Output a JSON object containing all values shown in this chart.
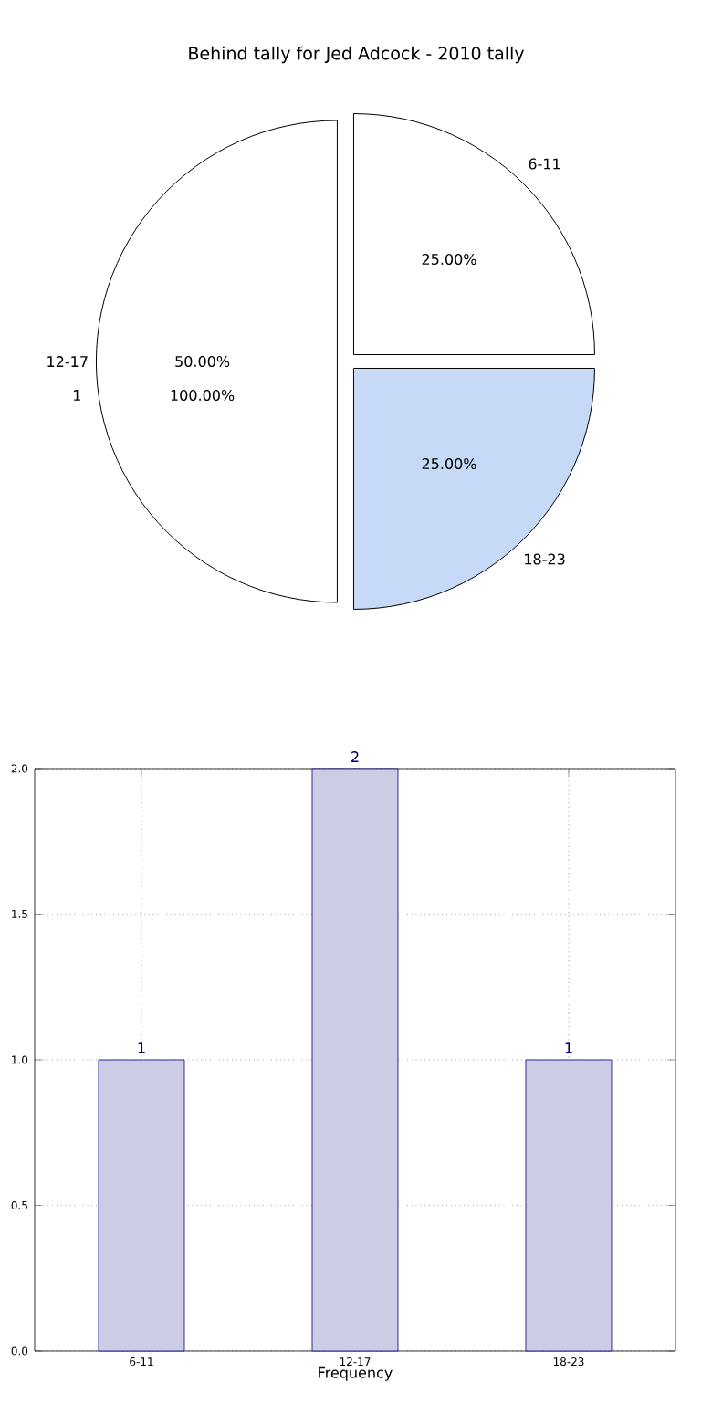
{
  "chart_data": [
    {
      "type": "pie",
      "title": "Behind tally for Jed Adcock - 2010 tally",
      "categories": [
        "6-11",
        "12-17",
        "18-23"
      ],
      "values": [
        25,
        50,
        25
      ],
      "colors": [
        "#ffffff",
        "#ffffff",
        "#c6d9f7"
      ],
      "value_labels": [
        "25.00%",
        "50.00%",
        "25.00%"
      ],
      "annotations": [
        "1",
        "100.00%"
      ]
    },
    {
      "type": "bar",
      "categories": [
        "6-11",
        "12-17",
        "18-23"
      ],
      "values": [
        1,
        2,
        1
      ],
      "color": "#ccccE5",
      "xlabel": "Frequency",
      "ylim": [
        0,
        2
      ],
      "yticks": [
        {
          "value": 0,
          "label": "0.0"
        },
        {
          "value": 0.5,
          "label": "0.5"
        },
        {
          "value": 1,
          "label": "1.0"
        },
        {
          "value": 1.5,
          "label": "1.5"
        },
        {
          "value": 2,
          "label": "2.0"
        }
      ],
      "grid": true,
      "data_labels": true
    }
  ]
}
